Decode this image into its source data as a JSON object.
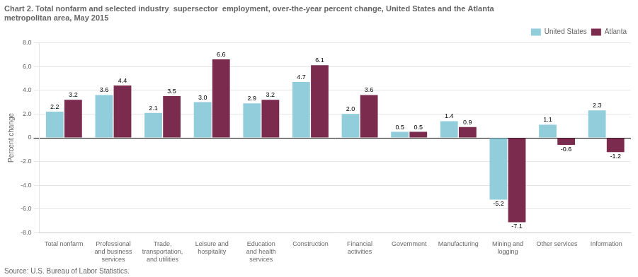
{
  "chart_data": {
    "type": "bar",
    "title": [
      "Chart 2. Total nonfarm and selected industry  supersector  employment, over-the-year percent change, United States and the Atlanta",
      "metropolitan area, May 2015"
    ],
    "ylabel": "Percent change",
    "source": "Source: U.S. Bureau of Labor Statistics.",
    "categories": [
      "Total nonfarm",
      "Professional\nand business\nservices",
      "Trade,\ntransportation,\nand utilities",
      "Leisure and\nhospitality",
      "Education\nand health\nservices",
      "Construction",
      "Financial\nactivities",
      "Government",
      "Manufacturing",
      "Mining and\nlogging",
      "Other services",
      "Information"
    ],
    "series": [
      {
        "name": "United States",
        "color": "#92CDDC",
        "values": [
          2.2,
          3.6,
          2.1,
          3.0,
          2.9,
          4.7,
          2.0,
          0.5,
          1.4,
          -5.2,
          1.1,
          2.3
        ],
        "value_labels": [
          "2.2",
          "3.6",
          "2.1",
          "3.0",
          "2.9",
          "4.7",
          "2.0",
          "0.5",
          "1.4",
          "-5.2",
          "1.1",
          "2.3"
        ]
      },
      {
        "name": "Atlanta",
        "color": "#7B2C4E",
        "values": [
          3.2,
          4.4,
          3.5,
          6.6,
          3.2,
          6.1,
          3.6,
          0.5,
          0.9,
          -7.1,
          -0.6,
          -1.2
        ],
        "value_labels": [
          "3.2",
          "4.4",
          "3.5",
          "6.6",
          "3.2",
          "6.1",
          "3.6",
          "0.5",
          "0.9",
          "-7.1",
          "-0.6",
          "-1.2"
        ]
      }
    ],
    "ylim": [
      -8.0,
      8.0
    ],
    "yticks": [
      {
        "value": -8.0,
        "label": "-8.0"
      },
      {
        "value": -6.0,
        "label": "-6.0"
      },
      {
        "value": -4.0,
        "label": "-4.0"
      },
      {
        "value": -2.0,
        "label": "-2.0"
      },
      0,
      {
        "value": 2.0,
        "label": "2.0"
      },
      {
        "value": 4.0,
        "label": "4.0"
      },
      {
        "value": 6.0,
        "label": "6.0"
      },
      {
        "value": 8.0,
        "label": "8.0"
      }
    ],
    "grid": true,
    "legend": "upper right",
    "data_labels": true
  }
}
